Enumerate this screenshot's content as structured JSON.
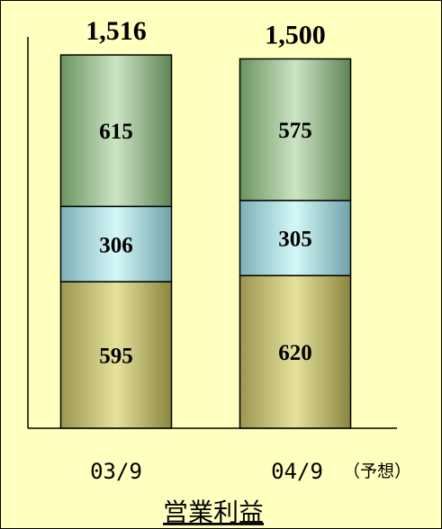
{
  "chart_data": {
    "type": "bar",
    "stacked": true,
    "title": "営業利益",
    "categories": [
      "03/9",
      "04/9"
    ],
    "category_note": "（予想）",
    "totals": [
      "1,516",
      "1,500"
    ],
    "series": [
      {
        "values": [
          595,
          620
        ],
        "color": "#c8c470"
      },
      {
        "values": [
          306,
          305
        ],
        "color": "#a8e4e4"
      },
      {
        "values": [
          615,
          575
        ],
        "color": "#98c090"
      }
    ],
    "ylim": [
      0,
      1600
    ],
    "grid": false
  }
}
